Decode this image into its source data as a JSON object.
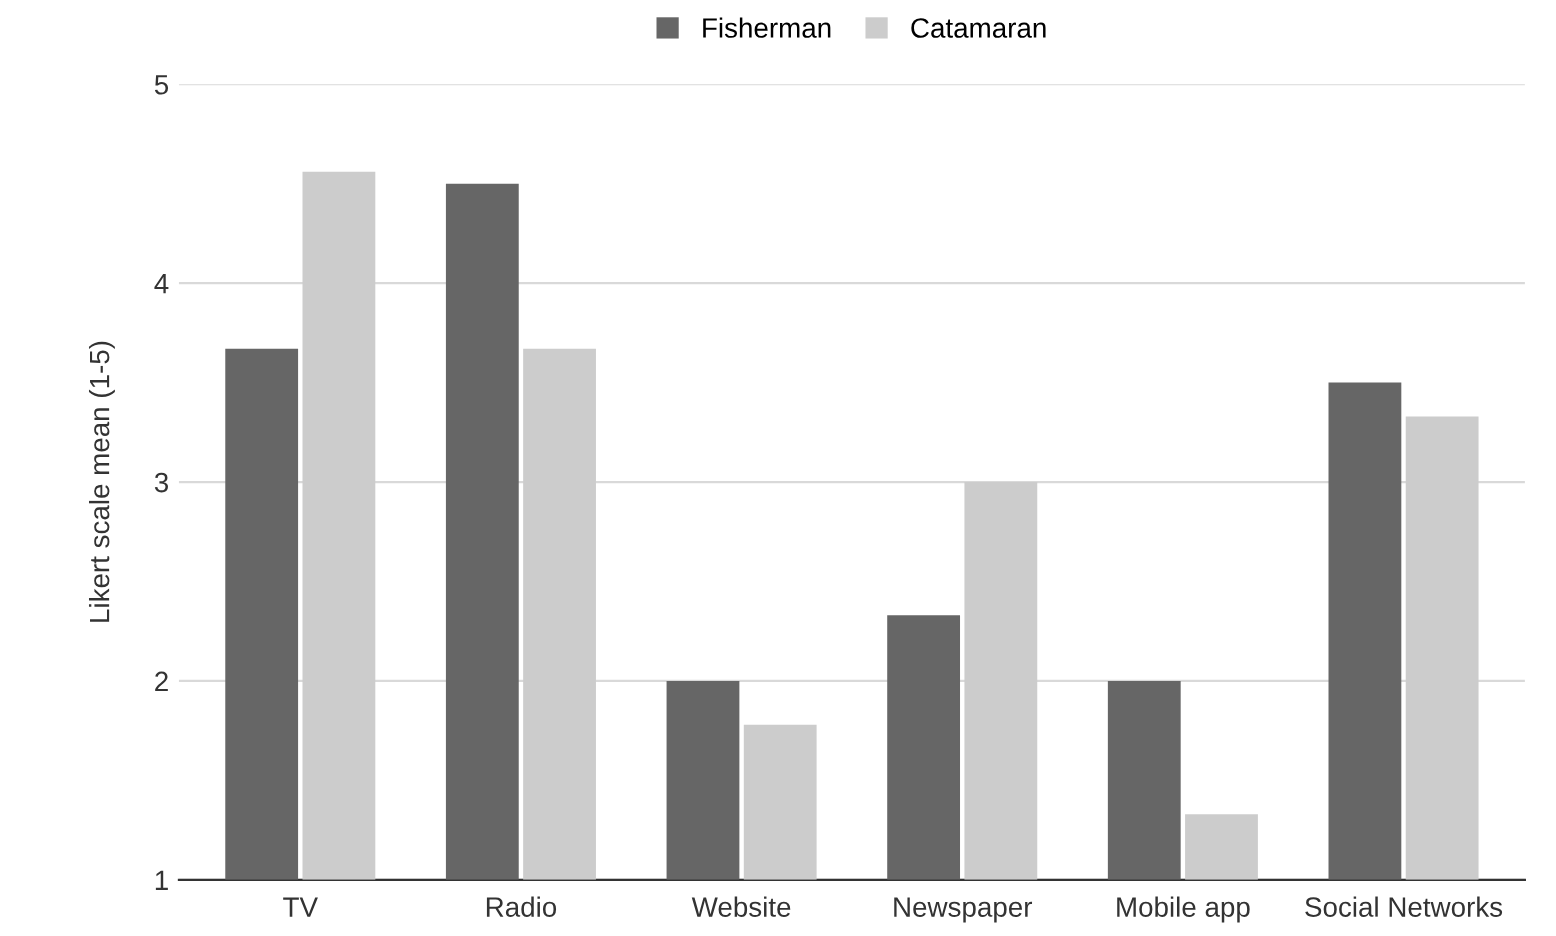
{
  "chart_data": {
    "type": "bar",
    "ylabel": "Likert scale mean (1-5)",
    "categories": [
      "TV",
      "Radio",
      "Website",
      "Newspaper",
      "Mobile app",
      "Social Networks"
    ],
    "series": [
      {
        "name": "Fisherman",
        "color": "#666666",
        "values": [
          3.67,
          4.5,
          2,
          2.33,
          2,
          3.5
        ]
      },
      {
        "name": "Catamaran",
        "color": "#cccccc",
        "values": [
          4.56,
          3.67,
          1.78,
          3,
          1.33,
          3.33
        ]
      }
    ],
    "ylim": [
      1,
      5
    ],
    "yticks": [
      1,
      2,
      3,
      4,
      5
    ],
    "grid": "y",
    "legend": "top"
  }
}
